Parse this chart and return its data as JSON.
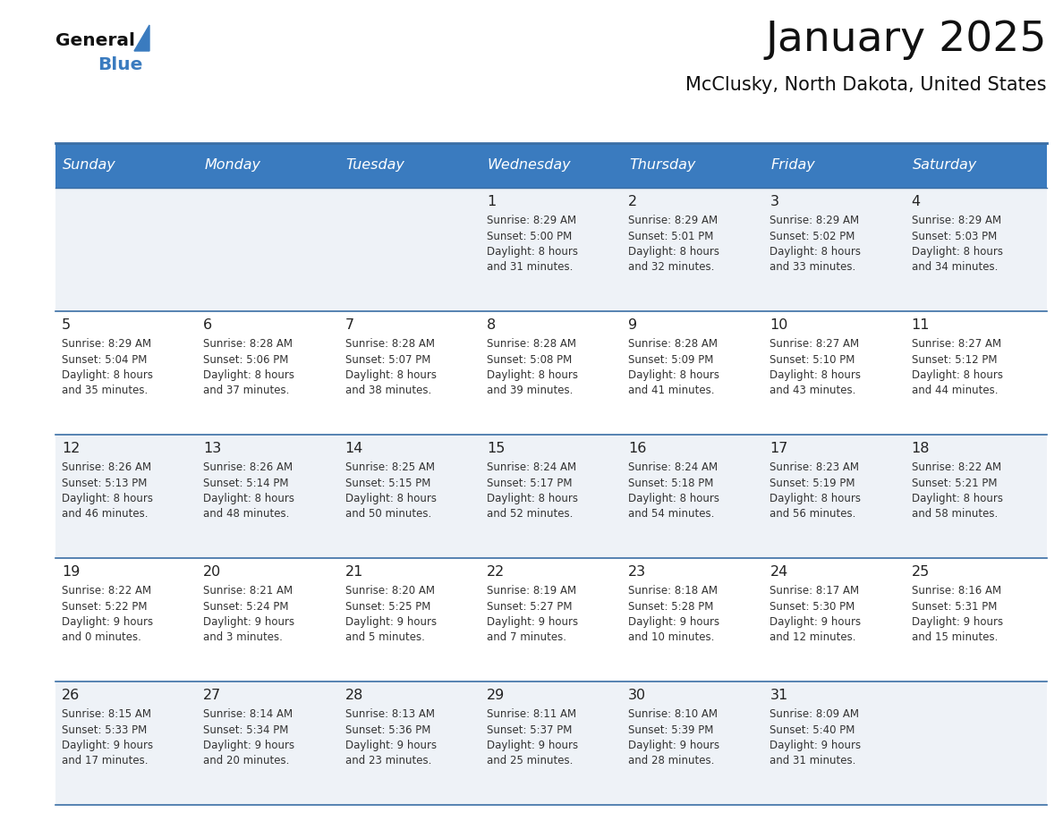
{
  "title": "January 2025",
  "subtitle": "McClusky, North Dakota, United States",
  "header_bg_color": "#3a7bbf",
  "header_text_color": "#ffffff",
  "row_bg_light": "#eef2f7",
  "row_bg_white": "#ffffff",
  "day_headers": [
    "Sunday",
    "Monday",
    "Tuesday",
    "Wednesday",
    "Thursday",
    "Friday",
    "Saturday"
  ],
  "cell_border_color": "#3a6ea5",
  "day_num_color": "#222222",
  "info_text_color": "#333333",
  "title_color": "#111111",
  "subtitle_color": "#111111",
  "logo_general_color": "#111111",
  "logo_blue_color": "#3a7bbf",
  "logo_triangle_color": "#3a7bbf",
  "fig_width": 11.88,
  "fig_height": 9.18,
  "dpi": 100,
  "calendar_data": [
    [
      "",
      "",
      "",
      "1|Sunrise: 8:29 AM|Sunset: 5:00 PM|Daylight: 8 hours|and 31 minutes.",
      "2|Sunrise: 8:29 AM|Sunset: 5:01 PM|Daylight: 8 hours|and 32 minutes.",
      "3|Sunrise: 8:29 AM|Sunset: 5:02 PM|Daylight: 8 hours|and 33 minutes.",
      "4|Sunrise: 8:29 AM|Sunset: 5:03 PM|Daylight: 8 hours|and 34 minutes."
    ],
    [
      "5|Sunrise: 8:29 AM|Sunset: 5:04 PM|Daylight: 8 hours|and 35 minutes.",
      "6|Sunrise: 8:28 AM|Sunset: 5:06 PM|Daylight: 8 hours|and 37 minutes.",
      "7|Sunrise: 8:28 AM|Sunset: 5:07 PM|Daylight: 8 hours|and 38 minutes.",
      "8|Sunrise: 8:28 AM|Sunset: 5:08 PM|Daylight: 8 hours|and 39 minutes.",
      "9|Sunrise: 8:28 AM|Sunset: 5:09 PM|Daylight: 8 hours|and 41 minutes.",
      "10|Sunrise: 8:27 AM|Sunset: 5:10 PM|Daylight: 8 hours|and 43 minutes.",
      "11|Sunrise: 8:27 AM|Sunset: 5:12 PM|Daylight: 8 hours|and 44 minutes."
    ],
    [
      "12|Sunrise: 8:26 AM|Sunset: 5:13 PM|Daylight: 8 hours|and 46 minutes.",
      "13|Sunrise: 8:26 AM|Sunset: 5:14 PM|Daylight: 8 hours|and 48 minutes.",
      "14|Sunrise: 8:25 AM|Sunset: 5:15 PM|Daylight: 8 hours|and 50 minutes.",
      "15|Sunrise: 8:24 AM|Sunset: 5:17 PM|Daylight: 8 hours|and 52 minutes.",
      "16|Sunrise: 8:24 AM|Sunset: 5:18 PM|Daylight: 8 hours|and 54 minutes.",
      "17|Sunrise: 8:23 AM|Sunset: 5:19 PM|Daylight: 8 hours|and 56 minutes.",
      "18|Sunrise: 8:22 AM|Sunset: 5:21 PM|Daylight: 8 hours|and 58 minutes."
    ],
    [
      "19|Sunrise: 8:22 AM|Sunset: 5:22 PM|Daylight: 9 hours|and 0 minutes.",
      "20|Sunrise: 8:21 AM|Sunset: 5:24 PM|Daylight: 9 hours|and 3 minutes.",
      "21|Sunrise: 8:20 AM|Sunset: 5:25 PM|Daylight: 9 hours|and 5 minutes.",
      "22|Sunrise: 8:19 AM|Sunset: 5:27 PM|Daylight: 9 hours|and 7 minutes.",
      "23|Sunrise: 8:18 AM|Sunset: 5:28 PM|Daylight: 9 hours|and 10 minutes.",
      "24|Sunrise: 8:17 AM|Sunset: 5:30 PM|Daylight: 9 hours|and 12 minutes.",
      "25|Sunrise: 8:16 AM|Sunset: 5:31 PM|Daylight: 9 hours|and 15 minutes."
    ],
    [
      "26|Sunrise: 8:15 AM|Sunset: 5:33 PM|Daylight: 9 hours|and 17 minutes.",
      "27|Sunrise: 8:14 AM|Sunset: 5:34 PM|Daylight: 9 hours|and 20 minutes.",
      "28|Sunrise: 8:13 AM|Sunset: 5:36 PM|Daylight: 9 hours|and 23 minutes.",
      "29|Sunrise: 8:11 AM|Sunset: 5:37 PM|Daylight: 9 hours|and 25 minutes.",
      "30|Sunrise: 8:10 AM|Sunset: 5:39 PM|Daylight: 9 hours|and 28 minutes.",
      "31|Sunrise: 8:09 AM|Sunset: 5:40 PM|Daylight: 9 hours|and 31 minutes.",
      ""
    ]
  ]
}
